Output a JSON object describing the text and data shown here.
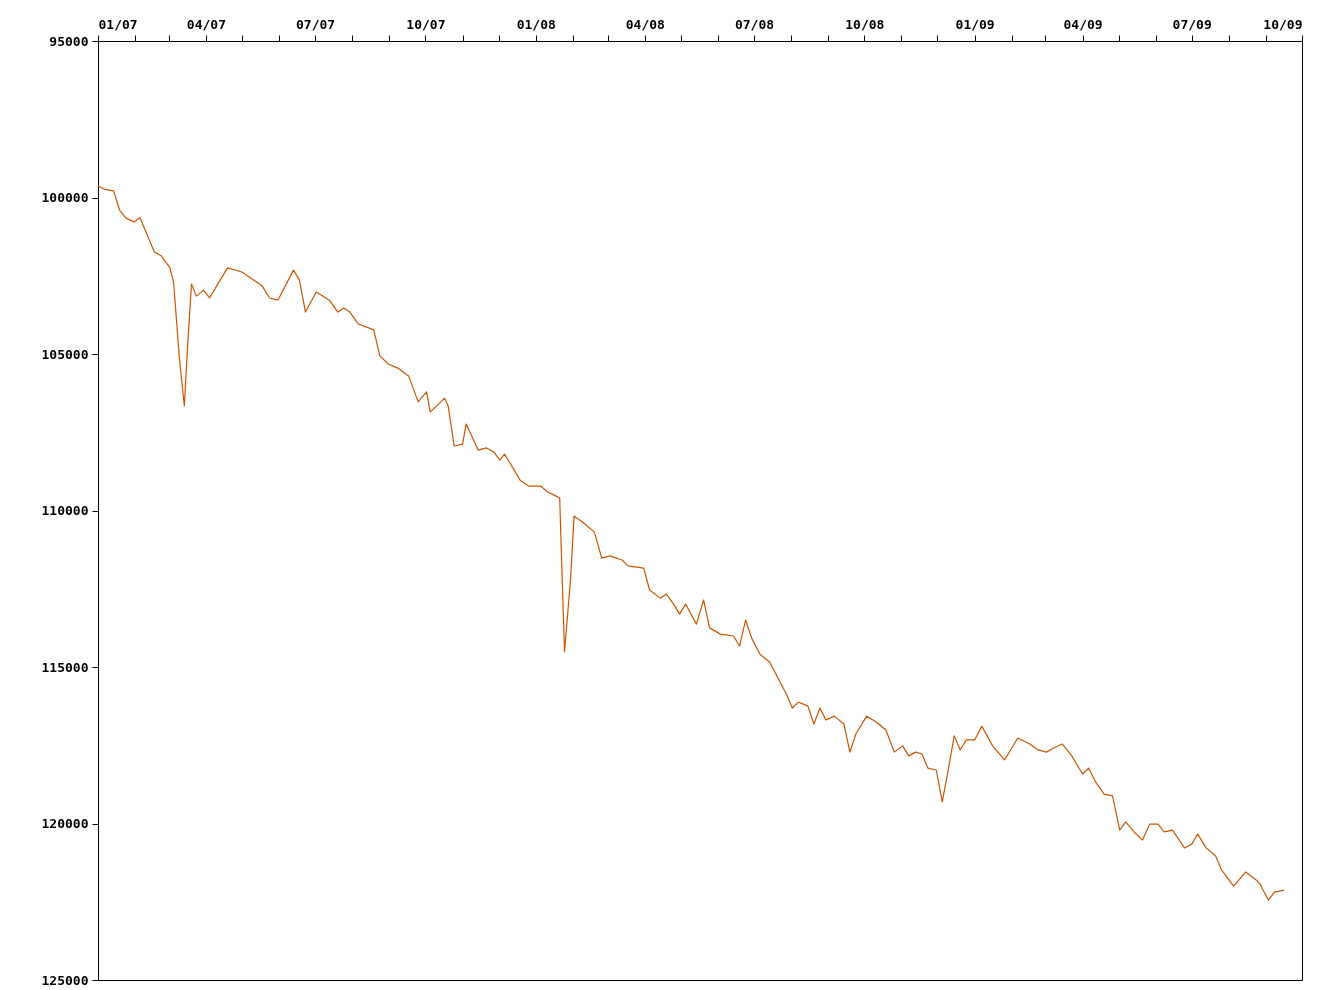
{
  "chart_data": {
    "type": "line",
    "x": [
      "2007-01-01",
      "2007-01-06",
      "2007-01-14",
      "2007-01-19",
      "2007-01-24",
      "2007-01-31",
      "2007-02-05",
      "2007-02-10",
      "2007-02-17",
      "2007-02-23",
      "2007-03-02",
      "2007-03-05",
      "2007-03-10",
      "2007-03-14",
      "2007-03-17",
      "2007-03-20",
      "2007-03-24",
      "2007-03-30",
      "2007-04-04",
      "2007-04-11",
      "2007-04-19",
      "2007-05-01",
      "2007-05-11",
      "2007-05-18",
      "2007-05-24",
      "2007-05-31",
      "2007-06-13",
      "2007-06-18",
      "2007-06-23",
      "2007-07-02",
      "2007-07-13",
      "2007-07-20",
      "2007-07-25",
      "2007-07-30",
      "2007-08-06",
      "2007-08-19",
      "2007-08-24",
      "2007-08-31",
      "2007-09-08",
      "2007-09-17",
      "2007-09-25",
      "2007-10-02",
      "2007-10-05",
      "2007-10-12",
      "2007-10-17",
      "2007-10-20",
      "2007-10-25",
      "2007-11-01",
      "2007-11-04",
      "2007-11-14",
      "2007-11-21",
      "2007-11-27",
      "2007-12-02",
      "2007-12-06",
      "2007-12-12",
      "2007-12-19",
      "2007-12-26",
      "2008-01-05",
      "2008-01-11",
      "2008-01-18",
      "2008-01-21",
      "2008-01-25",
      "2008-01-30",
      "2008-02-02",
      "2008-02-09",
      "2008-02-19",
      "2008-02-25",
      "2008-03-03",
      "2008-03-13",
      "2008-03-18",
      "2008-03-31",
      "2008-04-05",
      "2008-04-14",
      "2008-04-19",
      "2008-04-25",
      "2008-04-30",
      "2008-05-05",
      "2008-05-14",
      "2008-05-20",
      "2008-05-25",
      "2008-06-03",
      "2008-06-14",
      "2008-06-19",
      "2008-06-24",
      "2008-06-29",
      "2008-07-06",
      "2008-07-14",
      "2008-07-21",
      "2008-07-28",
      "2008-08-02",
      "2008-08-07",
      "2008-08-15",
      "2008-08-20",
      "2008-08-25",
      "2008-08-30",
      "2008-09-06",
      "2008-09-14",
      "2008-09-19",
      "2008-09-24",
      "2008-10-03",
      "2008-10-11",
      "2008-10-19",
      "2008-10-26",
      "2008-11-02",
      "2008-11-07",
      "2008-11-13",
      "2008-11-18",
      "2008-11-23",
      "2008-11-30",
      "2008-12-05",
      "2008-12-10",
      "2008-12-15",
      "2008-12-20",
      "2008-12-25",
      "2009-01-01",
      "2009-01-07",
      "2009-01-16",
      "2009-01-26",
      "2009-02-06",
      "2009-02-16",
      "2009-02-23",
      "2009-03-02",
      "2009-03-08",
      "2009-03-15",
      "2009-03-23",
      "2009-04-01",
      "2009-04-06",
      "2009-04-12",
      "2009-04-19",
      "2009-04-26",
      "2009-05-02",
      "2009-05-07",
      "2009-05-14",
      "2009-05-21",
      "2009-05-27",
      "2009-06-03",
      "2009-06-08",
      "2009-06-15",
      "2009-06-25",
      "2009-07-01",
      "2009-07-06",
      "2009-07-13",
      "2009-07-21",
      "2009-07-26",
      "2009-08-05",
      "2009-08-15",
      "2009-08-24",
      "2009-08-27",
      "2009-09-03",
      "2009-09-08",
      "2009-09-16"
    ],
    "series": [
      {
        "color": "#cc5500",
        "values": [
          99630,
          99730,
          99790,
          100400,
          100650,
          100780,
          100650,
          101100,
          101740,
          101870,
          102250,
          102700,
          105190,
          106660,
          104550,
          102760,
          103150,
          102960,
          103210,
          102760,
          102250,
          102380,
          102640,
          102830,
          103210,
          103280,
          102320,
          102640,
          103660,
          103020,
          103280,
          103660,
          103530,
          103660,
          104040,
          104230,
          105060,
          105320,
          105450,
          105700,
          106530,
          106210,
          106850,
          106600,
          106410,
          106660,
          107940,
          107880,
          107240,
          108070,
          108000,
          108130,
          108390,
          108200,
          108580,
          109030,
          109220,
          109220,
          109410,
          109540,
          109600,
          114520,
          112220,
          110180,
          110370,
          110690,
          111520,
          111450,
          111580,
          111770,
          111840,
          112540,
          112800,
          112670,
          112990,
          113310,
          112990,
          113630,
          112860,
          113750,
          113950,
          114010,
          114330,
          113500,
          114070,
          114590,
          114840,
          115350,
          115860,
          116310,
          116120,
          116250,
          116820,
          116310,
          116690,
          116570,
          116820,
          117720,
          117140,
          116570,
          116760,
          117010,
          117720,
          117520,
          117840,
          117720,
          117780,
          118230,
          118290,
          119310,
          118290,
          117200,
          117650,
          117330,
          117330,
          116890,
          117520,
          117970,
          117270,
          117460,
          117650,
          117720,
          117590,
          117460,
          117840,
          118420,
          118230,
          118680,
          119060,
          119120,
          120210,
          119950,
          120270,
          120530,
          120020,
          120020,
          120270,
          120210,
          120780,
          120660,
          120340,
          120780,
          121040,
          121490,
          122000,
          121550,
          121810,
          121940,
          122450,
          122190,
          122130
        ]
      }
    ],
    "xlim": [
      "2007-01-01",
      "2009-10-01"
    ],
    "ylim": [
      125000,
      95000
    ],
    "xticks": [
      {
        "value": "2007-01-01",
        "label": "01/07"
      },
      {
        "value": "2007-02-01",
        "label": null
      },
      {
        "value": "2007-03-01",
        "label": null
      },
      {
        "value": "2007-04-01",
        "label": "04/07"
      },
      {
        "value": "2007-05-01",
        "label": null
      },
      {
        "value": "2007-06-01",
        "label": null
      },
      {
        "value": "2007-07-01",
        "label": "07/07"
      },
      {
        "value": "2007-08-01",
        "label": null
      },
      {
        "value": "2007-09-01",
        "label": null
      },
      {
        "value": "2007-10-01",
        "label": "10/07"
      },
      {
        "value": "2007-11-01",
        "label": null
      },
      {
        "value": "2007-12-01",
        "label": null
      },
      {
        "value": "2008-01-01",
        "label": "01/08"
      },
      {
        "value": "2008-02-01",
        "label": null
      },
      {
        "value": "2008-03-01",
        "label": null
      },
      {
        "value": "2008-04-01",
        "label": "04/08"
      },
      {
        "value": "2008-05-01",
        "label": null
      },
      {
        "value": "2008-06-01",
        "label": null
      },
      {
        "value": "2008-07-01",
        "label": "07/08"
      },
      {
        "value": "2008-08-01",
        "label": null
      },
      {
        "value": "2008-09-01",
        "label": null
      },
      {
        "value": "2008-10-01",
        "label": "10/08"
      },
      {
        "value": "2008-11-01",
        "label": null
      },
      {
        "value": "2008-12-01",
        "label": null
      },
      {
        "value": "2009-01-01",
        "label": "01/09"
      },
      {
        "value": "2009-02-01",
        "label": null
      },
      {
        "value": "2009-03-01",
        "label": null
      },
      {
        "value": "2009-04-01",
        "label": "04/09"
      },
      {
        "value": "2009-05-01",
        "label": null
      },
      {
        "value": "2009-06-01",
        "label": null
      },
      {
        "value": "2009-07-01",
        "label": "07/09"
      },
      {
        "value": "2009-08-01",
        "label": null
      },
      {
        "value": "2009-09-01",
        "label": null
      },
      {
        "value": "2009-10-01",
        "label": "10/09"
      }
    ],
    "yticks": [
      95000,
      100000,
      105000,
      110000,
      115000,
      120000,
      125000
    ],
    "grid": false,
    "line_style": "solid"
  }
}
